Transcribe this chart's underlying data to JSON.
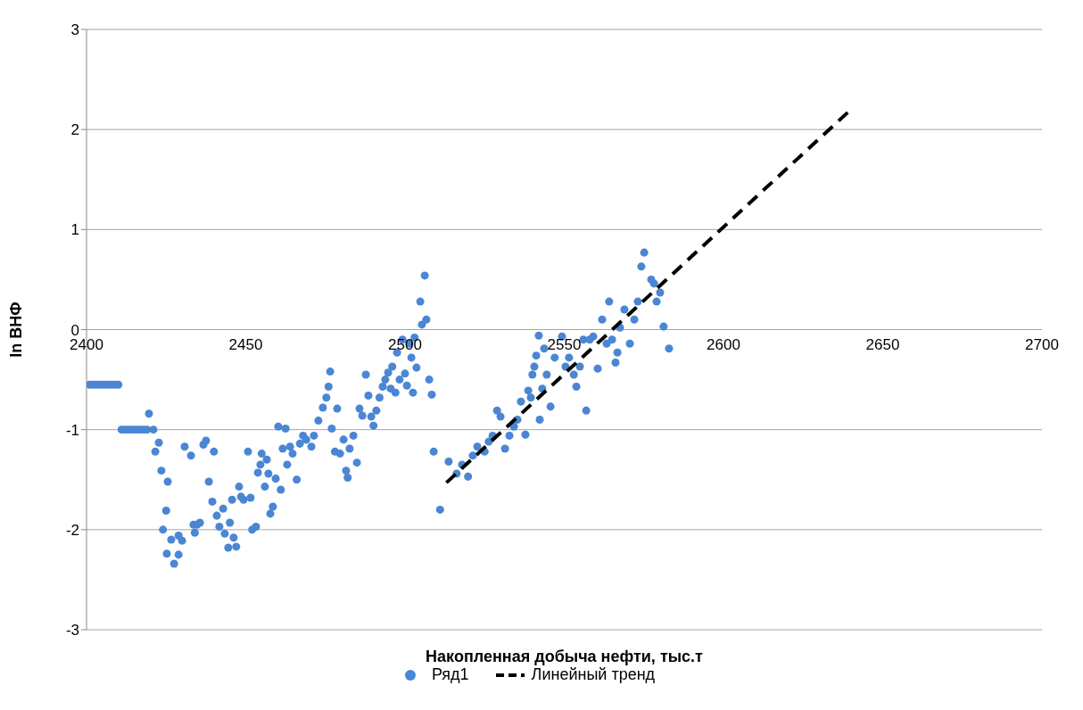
{
  "chart_data": {
    "type": "scatter",
    "xlabel": "Накопленная добыча нефти, тыс.т",
    "ylabel": "ln ВНФ",
    "xlim": [
      2400,
      2700
    ],
    "xticks": [
      2400,
      2450,
      2500,
      2550,
      2600,
      2650,
      2700
    ],
    "ylim": [
      -3,
      3
    ],
    "yticks": [
      -3,
      -2,
      -1,
      0,
      1,
      2,
      3
    ],
    "grid": "y",
    "legend": "bottom",
    "series": [
      {
        "name": "Ряд1",
        "type": "scatter",
        "color": "#4a86d4",
        "marker": "circle",
        "x": [
          2401,
          2402,
          2403,
          2404,
          2405,
          2406,
          2407,
          2408,
          2409,
          2410,
          2411,
          2412,
          2413,
          2414,
          2415,
          2416,
          2417,
          2418,
          2419,
          2419.6,
          2421,
          2421.6,
          2422.7,
          2423.5,
          2425.5,
          2425,
          2424,
          2425.2,
          2426.6,
          2427.5,
          2428.9,
          2428.9,
          2430,
          2430.8,
          2432.8,
          2433.6,
          2434,
          2434.7,
          2435.6,
          2436.7,
          2437.5,
          2438.4,
          2440,
          2439.5,
          2440.9,
          2441.7,
          2442.9,
          2443.4,
          2444.5,
          2445,
          2445.7,
          2446.2,
          2447,
          2447.9,
          2448.5,
          2449.3,
          2450.7,
          2451.5,
          2452,
          2453.2,
          2453.8,
          2454.6,
          2455,
          2456,
          2456.6,
          2457.1,
          2457.7,
          2458.5,
          2459.4,
          2460.2,
          2461,
          2461.6,
          2462.5,
          2463,
          2463.9,
          2464.7,
          2466,
          2467,
          2468,
          2469,
          2470.6,
          2471.4,
          2472.8,
          2474.2,
          2475.3,
          2476,
          2476.5,
          2477,
          2478,
          2478.7,
          2479.6,
          2480.7,
          2481.5,
          2482,
          2482.6,
          2483.8,
          2484.9,
          2485.7,
          2486.6,
          2487.7,
          2488.5,
          2489.4,
          2490.1,
          2491,
          2492,
          2493,
          2493.8,
          2494.7,
          2495.5,
          2496,
          2497,
          2497.5,
          2498.3,
          2499.2,
          2500,
          2500.6,
          2501.4,
          2502,
          2502.5,
          2503,
          2503.6,
          2504.8,
          2505.3,
          2506.2,
          2506.7,
          2507.6,
          2508.4,
          2509,
          2511,
          2513.7,
          2516.2,
          2517.9,
          2519.8,
          2521.3,
          2522.7,
          2525,
          2526.3,
          2527.5,
          2528.9,
          2530,
          2531.4,
          2532.8,
          2534.2,
          2535.3,
          2536.4,
          2537.8,
          2538.7,
          2539.5,
          2540,
          2540.6,
          2541.2,
          2542,
          2542.3,
          2543.1,
          2543.7,
          2544.5,
          2545.7,
          2547,
          2549.3,
          2550.4,
          2551.5,
          2553,
          2553.8,
          2554.9,
          2556,
          2556.9,
          2558,
          2559.1,
          2560.5,
          2561.9,
          2563.3,
          2564.1,
          2565,
          2566.1,
          2566.7,
          2567.5,
          2568.9,
          2570.6,
          2572,
          2573.1,
          2574.2,
          2575.1,
          2577.3,
          2578.2,
          2579,
          2580.1,
          2581.2,
          2582.9
        ],
        "values": [
          -0.55,
          -0.55,
          -0.55,
          -0.55,
          -0.55,
          -0.55,
          -0.55,
          -0.55,
          -0.55,
          -0.55,
          -1,
          -1,
          -1,
          -1,
          -1,
          -1,
          -1,
          -1,
          -1,
          -0.84,
          -1,
          -1.22,
          -1.13,
          -1.41,
          -1.52,
          -1.81,
          -2,
          -2.24,
          -2.1,
          -2.34,
          -2.06,
          -2.25,
          -2.11,
          -1.17,
          -1.26,
          -1.95,
          -2.03,
          -1.95,
          -1.93,
          -1.15,
          -1.11,
          -1.52,
          -1.22,
          -1.72,
          -1.86,
          -1.97,
          -1.79,
          -2.04,
          -2.18,
          -1.93,
          -1.7,
          -2.08,
          -2.17,
          -1.57,
          -1.67,
          -1.7,
          -1.22,
          -1.68,
          -2,
          -1.97,
          -1.43,
          -1.35,
          -1.24,
          -1.57,
          -1.3,
          -1.44,
          -1.84,
          -1.77,
          -1.49,
          -0.97,
          -1.6,
          -1.19,
          -0.99,
          -1.35,
          -1.17,
          -1.24,
          -1.5,
          -1.14,
          -1.06,
          -1.1,
          -1.17,
          -1.06,
          -0.91,
          -0.78,
          -0.68,
          -0.57,
          -0.42,
          -0.99,
          -1.22,
          -0.79,
          -1.24,
          -1.1,
          -1.41,
          -1.48,
          -1.19,
          -1.06,
          -1.33,
          -0.79,
          -0.86,
          -0.45,
          -0.66,
          -0.87,
          -0.96,
          -0.81,
          -0.68,
          -0.57,
          -0.5,
          -0.43,
          -0.59,
          -0.37,
          -0.63,
          -0.23,
          -0.5,
          -0.1,
          -0.44,
          -0.56,
          -0.14,
          -0.28,
          -0.63,
          -0.08,
          -0.38,
          0.28,
          0.05,
          0.54,
          0.1,
          -0.5,
          -0.65,
          -1.22,
          -1.8,
          -1.32,
          -1.44,
          -1.35,
          -1.47,
          -1.26,
          -1.17,
          -1.22,
          -1.12,
          -1.06,
          -0.81,
          -0.87,
          -1.19,
          -1.06,
          -0.97,
          -0.9,
          -0.72,
          -1.05,
          -0.61,
          -0.68,
          -0.45,
          -0.37,
          -0.26,
          -0.06,
          -0.9,
          -0.59,
          -0.19,
          -0.45,
          -0.77,
          -0.28,
          -0.07,
          -0.37,
          -0.28,
          -0.45,
          -0.57,
          -0.37,
          -0.1,
          -0.81,
          -0.1,
          -0.07,
          -0.39,
          0.1,
          -0.14,
          0.28,
          -0.1,
          -0.33,
          -0.23,
          0.02,
          0.2,
          -0.14,
          0.1,
          0.28,
          0.63,
          0.77,
          0.5,
          0.46,
          0.28,
          0.37,
          0.03,
          -0.19
        ]
      },
      {
        "name": "Линейный тренд",
        "type": "line",
        "color": "#000000",
        "marker": "none",
        "line_style": "dashed",
        "x": [
          2513,
          2639
        ],
        "values": [
          -1.53,
          2.17
        ]
      }
    ]
  }
}
